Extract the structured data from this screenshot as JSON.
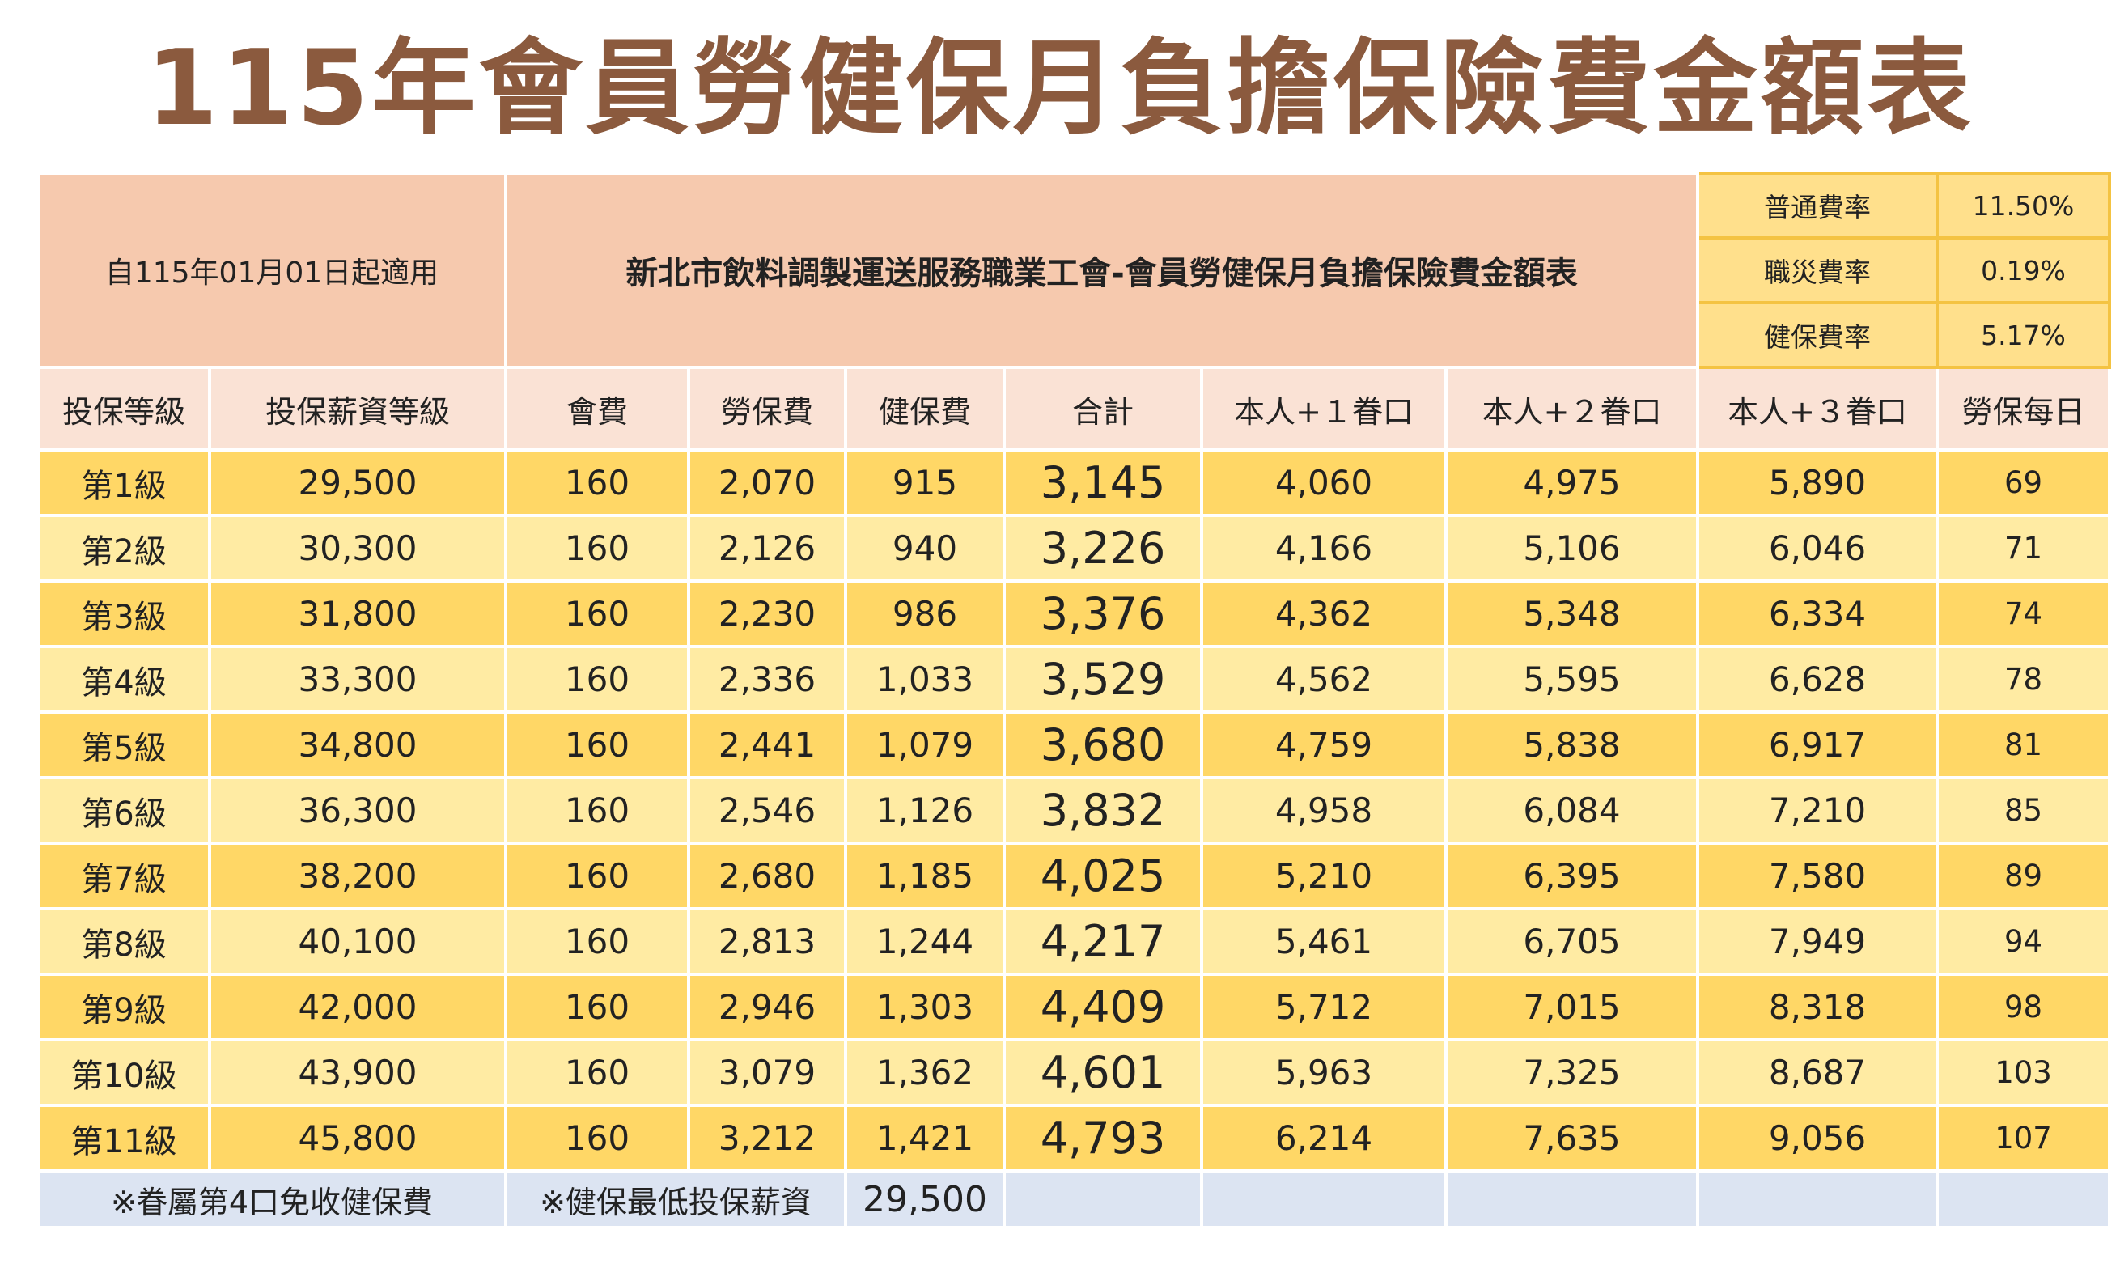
{
  "title": "115年會員勞健保月負擔保險費金額表",
  "header": {
    "effective_date": "自115年01月01日起適用",
    "table_title": "新北市飲料調製運送服務職業工會-會員勞健保月負擔保險費金額表"
  },
  "rates": [
    {
      "label": "普通費率",
      "value": "11.50%"
    },
    {
      "label": "職災費率",
      "value": "0.19%"
    },
    {
      "label": "健保費率",
      "value": "5.17%"
    }
  ],
  "columns": [
    "投保等級",
    "投保薪資等級",
    "會費",
    "勞保費",
    "健保費",
    "合計",
    "本人+１眷口",
    "本人+２眷口",
    "本人+３眷口",
    "勞保每日"
  ],
  "rows": [
    [
      "第1級",
      "29,500",
      "160",
      "2,070",
      "915",
      "3,145",
      "4,060",
      "4,975",
      "5,890",
      "69"
    ],
    [
      "第2級",
      "30,300",
      "160",
      "2,126",
      "940",
      "3,226",
      "4,166",
      "5,106",
      "6,046",
      "71"
    ],
    [
      "第3級",
      "31,800",
      "160",
      "2,230",
      "986",
      "3,376",
      "4,362",
      "5,348",
      "6,334",
      "74"
    ],
    [
      "第4級",
      "33,300",
      "160",
      "2,336",
      "1,033",
      "3,529",
      "4,562",
      "5,595",
      "6,628",
      "78"
    ],
    [
      "第5級",
      "34,800",
      "160",
      "2,441",
      "1,079",
      "3,680",
      "4,759",
      "5,838",
      "6,917",
      "81"
    ],
    [
      "第6級",
      "36,300",
      "160",
      "2,546",
      "1,126",
      "3,832",
      "4,958",
      "6,084",
      "7,210",
      "85"
    ],
    [
      "第7級",
      "38,200",
      "160",
      "2,680",
      "1,185",
      "4,025",
      "5,210",
      "6,395",
      "7,580",
      "89"
    ],
    [
      "第8級",
      "40,100",
      "160",
      "2,813",
      "1,244",
      "4,217",
      "5,461",
      "6,705",
      "7,949",
      "94"
    ],
    [
      "第9級",
      "42,000",
      "160",
      "2,946",
      "1,303",
      "4,409",
      "5,712",
      "7,015",
      "8,318",
      "98"
    ],
    [
      "第10級",
      "43,900",
      "160",
      "3,079",
      "1,362",
      "4,601",
      "5,963",
      "7,325",
      "8,687",
      "103"
    ],
    [
      "第11級",
      "45,800",
      "160",
      "3,212",
      "1,421",
      "4,793",
      "6,214",
      "7,635",
      "9,056",
      "107"
    ]
  ],
  "footer": {
    "note1": "※眷屬第4口免收健保費",
    "note2": "※健保最低投保薪資",
    "min_salary": "29,500"
  },
  "colors": {
    "title": "#8B5A3E",
    "header_peach": "#F6C9AE",
    "row_dark": "#FFD766",
    "row_light": "#FFEBA3",
    "footer": "#DCE4F2"
  }
}
